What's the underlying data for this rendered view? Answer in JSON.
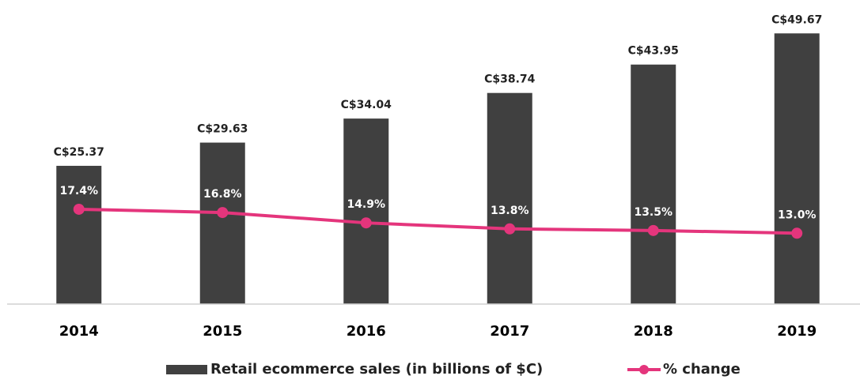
{
  "chart_data": {
    "type": "bar",
    "categories": [
      "2014",
      "2015",
      "2016",
      "2017",
      "2018",
      "2019"
    ],
    "series": [
      {
        "name": "Retail ecommerce sales (in billions of $C)",
        "type": "bar",
        "color": "#404040",
        "values": [
          25.37,
          29.63,
          34.04,
          38.74,
          43.95,
          49.67
        ],
        "value_labels": [
          "C$25.37",
          "C$29.63",
          "C$34.04",
          "C$38.74",
          "C$43.95",
          "C$49.67"
        ]
      },
      {
        "name": "% change",
        "type": "line",
        "axis": "y2",
        "color": "#e4357c",
        "values": [
          17.4,
          16.8,
          14.9,
          13.8,
          13.5,
          13.0
        ],
        "value_labels": [
          "17.4%",
          "16.8%",
          "14.9%",
          "13.8%",
          "13.5%",
          "13.0%"
        ]
      }
    ],
    "ylim": [
      0,
      50
    ],
    "y2lim": [
      0,
      50
    ],
    "grid": false,
    "legend": "bottom"
  }
}
